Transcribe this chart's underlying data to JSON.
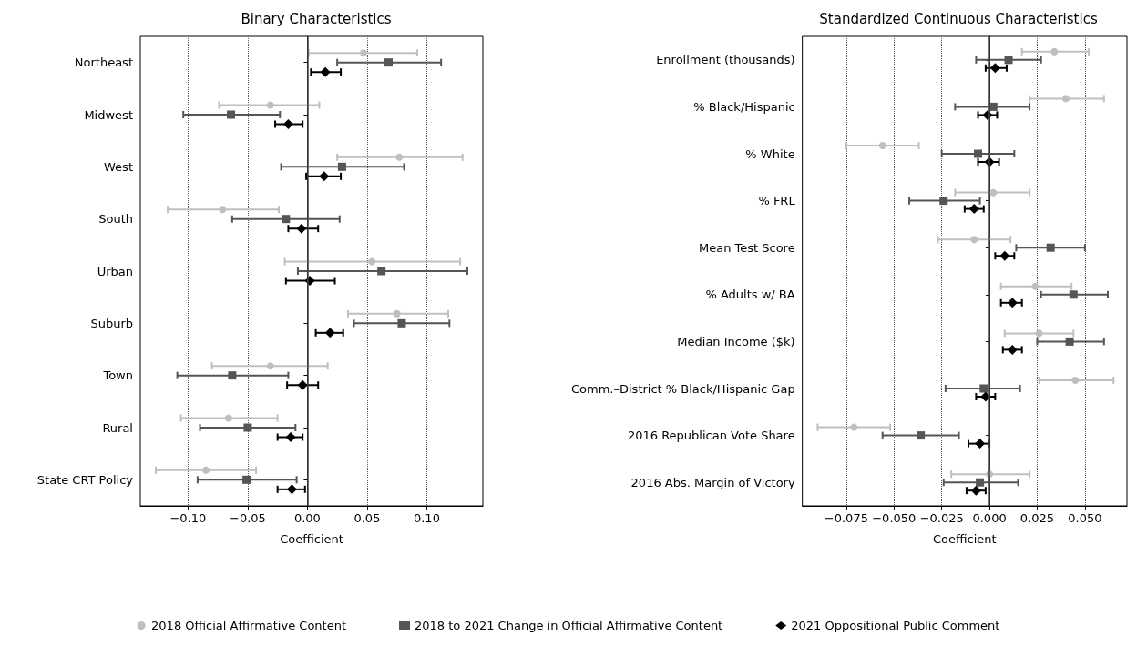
{
  "chart_data": [
    {
      "type": "scatter",
      "title": "Binary Characteristics",
      "xlabel": "Coefficient",
      "orientation": "horizontal",
      "categories": [
        "Northeast",
        "Midwest",
        "West",
        "South",
        "Urban",
        "Suburb",
        "Town",
        "Rural",
        "State CRT Policy"
      ],
      "xlim": [
        -0.14,
        0.147
      ],
      "xticks": [
        {
          "value": -0.1,
          "label": "−0.10"
        },
        {
          "value": -0.05,
          "label": "−0.05"
        },
        {
          "value": 0,
          "label": "0.00"
        },
        {
          "value": 0.05,
          "label": "0.05"
        },
        {
          "value": 0.1,
          "label": "0.10"
        }
      ],
      "grid": "x",
      "legend": "bottom",
      "ref_lines": [
        {
          "axis": "x",
          "value": 0,
          "color": "#404040",
          "line_style": "solid"
        }
      ],
      "series": [
        {
          "name": "2018 Official Affirmative Content",
          "color": "#bfbfbf",
          "marker": "circle",
          "values": [
            0.047,
            -0.031,
            0.077,
            -0.071,
            0.054,
            0.075,
            -0.031,
            -0.066,
            -0.085
          ],
          "errors": [
            [
              0.001,
              0.092
            ],
            [
              -0.074,
              0.01
            ],
            [
              0.025,
              0.13
            ],
            [
              -0.117,
              -0.024
            ],
            [
              -0.019,
              0.128
            ],
            [
              0.034,
              0.118
            ],
            [
              -0.08,
              0.017
            ],
            [
              -0.106,
              -0.025
            ],
            [
              -0.127,
              -0.043
            ]
          ]
        },
        {
          "name": "2018 to 2021 Change in Official Affirmative Content",
          "color": "#555555",
          "marker": "square",
          "values": [
            0.068,
            -0.064,
            0.029,
            -0.018,
            0.062,
            0.079,
            -0.063,
            -0.05,
            -0.051
          ],
          "errors": [
            [
              0.025,
              0.112
            ],
            [
              -0.104,
              -0.023
            ],
            [
              -0.022,
              0.081
            ],
            [
              -0.063,
              0.027
            ],
            [
              -0.008,
              0.134
            ],
            [
              0.039,
              0.119
            ],
            [
              -0.109,
              -0.016
            ],
            [
              -0.09,
              -0.01
            ],
            [
              -0.092,
              -0.009
            ]
          ]
        },
        {
          "name": "2021 Oppositional Public Comment",
          "color": "#000000",
          "marker": "diamond",
          "values": [
            0.015,
            -0.016,
            0.014,
            -0.005,
            0.002,
            0.019,
            -0.004,
            -0.014,
            -0.013
          ],
          "errors": [
            [
              0.003,
              0.028
            ],
            [
              -0.027,
              -0.004
            ],
            [
              -0.001,
              0.028
            ],
            [
              -0.016,
              0.009
            ],
            [
              -0.018,
              0.023
            ],
            [
              0.007,
              0.03
            ],
            [
              -0.017,
              0.009
            ],
            [
              -0.025,
              -0.004
            ],
            [
              -0.025,
              -0.002
            ]
          ]
        }
      ]
    },
    {
      "type": "scatter",
      "title": "Standardized Continuous Characteristics",
      "xlabel": "Coefficient",
      "orientation": "horizontal",
      "categories": [
        "Enrollment (thousands)",
        "% Black/Hispanic",
        "% White",
        "% FRL",
        "Mean Test Score",
        "% Adults w/ BA",
        "Median Income ($k)",
        "Comm.–District % Black/Hispanic Gap",
        "2016 Republican Vote Share",
        "2016 Abs. Margin of Victory"
      ],
      "xlim": [
        -0.098,
        0.072
      ],
      "xticks": [
        {
          "value": -0.075,
          "label": "−0.075"
        },
        {
          "value": -0.05,
          "label": "−0.050"
        },
        {
          "value": -0.025,
          "label": "−0.025"
        },
        {
          "value": 0,
          "label": "0.000"
        },
        {
          "value": 0.025,
          "label": "0.025"
        },
        {
          "value": 0.05,
          "label": "0.050"
        }
      ],
      "grid": "x",
      "ref_lines": [
        {
          "axis": "x",
          "value": 0,
          "color": "#404040",
          "line_style": "solid"
        }
      ],
      "series": [
        {
          "color": "#bfbfbf",
          "marker": "circle",
          "values": [
            0.034,
            0.04,
            -0.056,
            0.002,
            -0.008,
            0.024,
            0.026,
            0.045,
            -0.071,
            0.0
          ],
          "errors": [
            [
              0.017,
              0.052
            ],
            [
              0.021,
              0.06
            ],
            [
              -0.075,
              -0.037
            ],
            [
              -0.018,
              0.021
            ],
            [
              -0.027,
              0.011
            ],
            [
              0.006,
              0.043
            ],
            [
              0.008,
              0.044
            ],
            [
              0.026,
              0.065
            ],
            [
              -0.09,
              -0.052
            ],
            [
              -0.02,
              0.021
            ]
          ]
        },
        {
          "color": "#555555",
          "marker": "square",
          "values": [
            0.01,
            0.002,
            -0.006,
            -0.024,
            0.032,
            0.044,
            0.042,
            -0.003,
            -0.036,
            -0.005
          ],
          "errors": [
            [
              -0.007,
              0.027
            ],
            [
              -0.018,
              0.021
            ],
            [
              -0.025,
              0.013
            ],
            [
              -0.042,
              -0.005
            ],
            [
              0.014,
              0.05
            ],
            [
              0.027,
              0.062
            ],
            [
              0.025,
              0.06
            ],
            [
              -0.023,
              0.016
            ],
            [
              -0.056,
              -0.016
            ],
            [
              -0.024,
              0.015
            ]
          ]
        },
        {
          "color": "#000000",
          "marker": "diamond",
          "values": [
            0.003,
            -0.001,
            0.0,
            -0.008,
            0.008,
            0.012,
            0.012,
            -0.002,
            -0.005,
            -0.007
          ],
          "errors": [
            [
              -0.002,
              0.009
            ],
            [
              -0.006,
              0.004
            ],
            [
              -0.006,
              0.005
            ],
            [
              -0.013,
              -0.003
            ],
            [
              0.003,
              0.013
            ],
            [
              0.006,
              0.017
            ],
            [
              0.007,
              0.017
            ],
            [
              -0.007,
              0.003
            ],
            [
              -0.011,
              0.0
            ],
            [
              -0.012,
              -0.002
            ]
          ]
        }
      ]
    }
  ]
}
